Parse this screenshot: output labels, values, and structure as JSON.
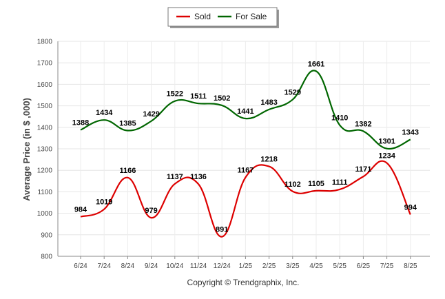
{
  "chart_data": {
    "type": "line",
    "categories": [
      "6/24",
      "7/24",
      "8/24",
      "9/24",
      "10/24",
      "11/24",
      "12/24",
      "1/25",
      "2/25",
      "3/25",
      "4/25",
      "5/25",
      "6/25",
      "7/25",
      "8/25"
    ],
    "series": [
      {
        "name": "Sold",
        "color": "#dd0000",
        "values": [
          984,
          1019,
          1166,
          979,
          1137,
          1136,
          891,
          1167,
          1218,
          1102,
          1105,
          1111,
          1171,
          1234,
          994
        ]
      },
      {
        "name": "For Sale",
        "color": "#006600",
        "values": [
          1388,
          1434,
          1385,
          1429,
          1522,
          1511,
          1502,
          1441,
          1483,
          1529,
          1661,
          1410,
          1382,
          1301,
          1343
        ]
      }
    ],
    "ylabel": "Average Price (in $ ,000)",
    "ylim": [
      800,
      1800
    ],
    "yticks": [
      800,
      900,
      1000,
      1100,
      1200,
      1300,
      1400,
      1500,
      1600,
      1700,
      1800
    ],
    "grid": true,
    "legend_position": "top-center",
    "footer": "Copyright © Trendgraphix, Inc."
  }
}
